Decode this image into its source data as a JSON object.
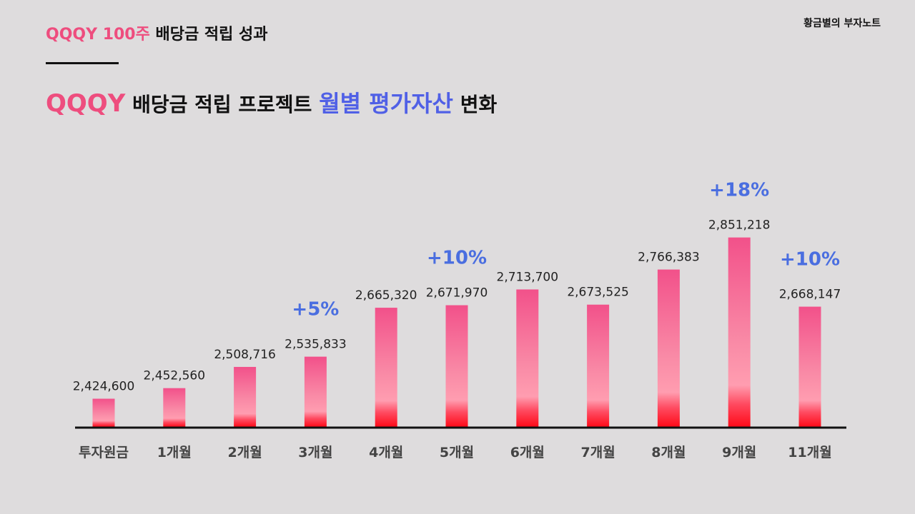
{
  "brand": "황금별의 부자노트",
  "header": {
    "title_accent": "QQQY 100주",
    "title_rest": "배당금 적립 성과"
  },
  "main_title": {
    "ticker": "QQQY",
    "part1": "배당금 적립 프로젝트",
    "highlight": "월별 평가자산",
    "part2": "변화"
  },
  "colors": {
    "accent_pink": "#ee4d7e",
    "accent_blue": "#5060e6",
    "growth_label": "#4a6ee0",
    "bar_top": "#f25386",
    "bar_bottom": "#ff1020"
  },
  "chart_data": {
    "type": "bar",
    "title": "QQQY 배당금 적립 프로젝트 월별 평가자산 변화",
    "categories": [
      "투자원금",
      "1개월",
      "2개월",
      "3개월",
      "4개월",
      "5개월",
      "6개월",
      "7개월",
      "8개월",
      "9개월",
      "11개월"
    ],
    "values": [
      2424600,
      2452560,
      2508716,
      2535833,
      2665320,
      2671970,
      2713700,
      2673525,
      2766383,
      2851218,
      2668147
    ],
    "value_labels": [
      "2,424,600",
      "2,452,560",
      "2,508,716",
      "2,535,833",
      "2,665,320",
      "2,671,970",
      "2,713,700",
      "2,673,525",
      "2,766,383",
      "2,851,218",
      "2,668,147"
    ],
    "annotations": [
      {
        "category": "3개월",
        "text": "+5%"
      },
      {
        "category": "5개월",
        "text": "+10%"
      },
      {
        "category": "9개월",
        "text": "+18%"
      },
      {
        "category": "11개월",
        "text": "+10%"
      }
    ],
    "xlabel": "",
    "ylabel": "",
    "ylim": [
      2350000,
      2860000
    ],
    "grid": false
  }
}
